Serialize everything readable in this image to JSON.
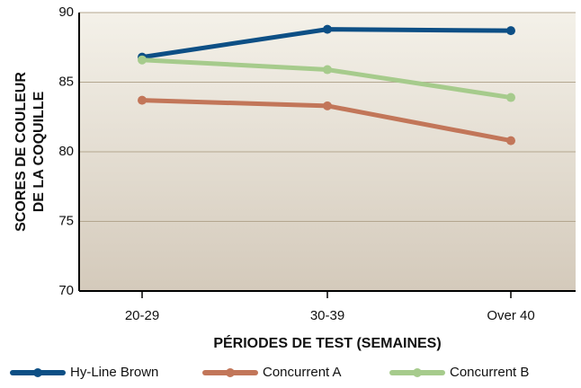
{
  "chart_data": {
    "type": "line",
    "ylabel": [
      "SCORES DE COULEUR",
      "DE LA COQUILLE"
    ],
    "xlabel": "PÉRIODES DE TEST (SEMAINES)",
    "categories": [
      "20-29",
      "30-39",
      "Over 40"
    ],
    "series": [
      {
        "name": "Hy-Line Brown",
        "color": "#0d4f85",
        "values": [
          86.8,
          88.8,
          88.7
        ]
      },
      {
        "name": "Concurrent A",
        "color": "#c27659",
        "values": [
          83.7,
          83.3,
          80.8
        ]
      },
      {
        "name": "Concurrent B",
        "color": "#a6cb8c",
        "values": [
          86.6,
          85.9,
          83.9
        ]
      }
    ],
    "ylim": [
      70,
      90
    ],
    "yticks": [
      70,
      75,
      80,
      85,
      90
    ],
    "grid": true
  }
}
